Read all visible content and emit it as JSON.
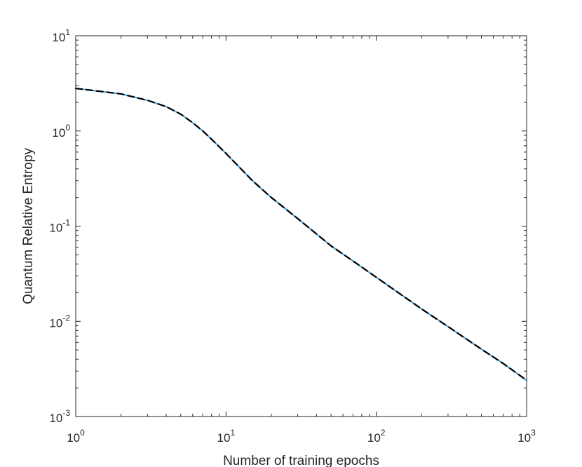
{
  "chart_data": {
    "type": "line",
    "title": "",
    "xlabel": "Number of training epochs",
    "ylabel": "Quantum Relative Entropy",
    "x_scale": "log",
    "y_scale": "log",
    "xlim": [
      1,
      1000
    ],
    "ylim": [
      0.001,
      10
    ],
    "grid": false,
    "legend": "none",
    "x_ticks": [
      {
        "value": 1,
        "base": "10",
        "exp": "0"
      },
      {
        "value": 10,
        "base": "10",
        "exp": "1"
      },
      {
        "value": 100,
        "base": "10",
        "exp": "2"
      },
      {
        "value": 1000,
        "base": "10",
        "exp": "3"
      }
    ],
    "y_ticks": [
      {
        "value": 0.001,
        "base": "10",
        "exp": "-3"
      },
      {
        "value": 0.01,
        "base": "10",
        "exp": "-2"
      },
      {
        "value": 0.1,
        "base": "10",
        "exp": "-1"
      },
      {
        "value": 1,
        "base": "10",
        "exp": "0"
      },
      {
        "value": 10,
        "base": "10",
        "exp": "1"
      }
    ],
    "series": [
      {
        "color": "#4da6d9",
        "style": "solid",
        "x": [
          1,
          2,
          3,
          4,
          5,
          6,
          7,
          8,
          10,
          15,
          20,
          30,
          50,
          70,
          100,
          200,
          300,
          500,
          700,
          1000
        ],
        "y": [
          2.8,
          2.45,
          2.1,
          1.8,
          1.5,
          1.22,
          1.0,
          0.82,
          0.58,
          0.3,
          0.2,
          0.12,
          0.062,
          0.043,
          0.029,
          0.0135,
          0.0088,
          0.0051,
          0.0036,
          0.0024
        ]
      },
      {
        "color": "#000000",
        "style": "dashed",
        "x": [
          1,
          2,
          3,
          4,
          5,
          6,
          7,
          8,
          10,
          15,
          20,
          30,
          50,
          70,
          100,
          200,
          300,
          500,
          700,
          1000
        ],
        "y": [
          2.8,
          2.45,
          2.1,
          1.8,
          1.5,
          1.22,
          1.0,
          0.82,
          0.58,
          0.3,
          0.2,
          0.12,
          0.062,
          0.043,
          0.029,
          0.0135,
          0.0088,
          0.0051,
          0.0036,
          0.0024
        ]
      }
    ]
  }
}
